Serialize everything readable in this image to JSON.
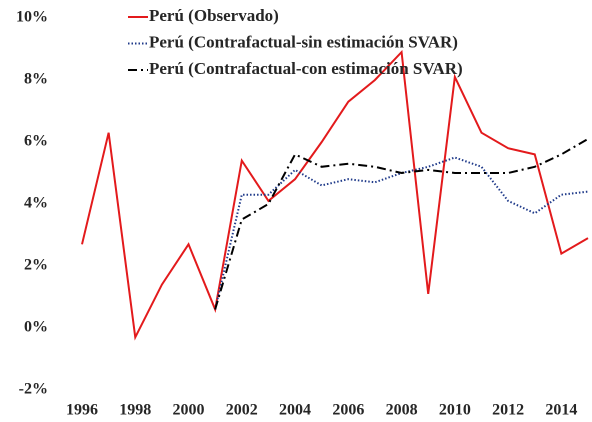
{
  "chart_data": {
    "type": "line",
    "x": [
      1996,
      1997,
      1998,
      1999,
      2000,
      2001,
      2002,
      2003,
      2004,
      2005,
      2006,
      2007,
      2008,
      2009,
      2010,
      2011,
      2012,
      2013,
      2014,
      2015
    ],
    "series": [
      {
        "name": "Perú (Observado)",
        "color": "#e31a1c",
        "dash": "solid",
        "values": [
          2.7,
          6.3,
          -0.3,
          1.4,
          2.7,
          0.6,
          5.4,
          4.1,
          4.8,
          6.0,
          7.3,
          8.0,
          8.9,
          1.1,
          8.1,
          6.3,
          5.8,
          5.6,
          2.4,
          2.9
        ]
      },
      {
        "name": "Perú (Contrafactual-sin estimación SVAR)",
        "color": "#1f3a8a",
        "dash": "dotted",
        "values": [
          null,
          null,
          null,
          null,
          null,
          0.6,
          4.3,
          4.3,
          5.1,
          4.6,
          4.8,
          4.7,
          5.0,
          5.2,
          5.5,
          5.2,
          4.1,
          3.7,
          4.3,
          4.4
        ]
      },
      {
        "name": "Perú (Contrafactual-con estimación SVAR)",
        "color": "#000000",
        "dash": "dashdot",
        "values": [
          null,
          null,
          null,
          null,
          null,
          0.6,
          3.5,
          4.0,
          5.6,
          5.2,
          5.3,
          5.2,
          5.0,
          5.1,
          5.0,
          5.0,
          5.0,
          5.2,
          5.6,
          6.1
        ]
      }
    ],
    "xlim": [
      1996,
      2015
    ],
    "xticks": [
      1996,
      1998,
      2000,
      2002,
      2004,
      2006,
      2008,
      2010,
      2012,
      2014
    ],
    "ylim": [
      -2,
      10
    ],
    "yticks": [
      {
        "value": -2,
        "label": "-2%"
      },
      {
        "value": 0,
        "label": "0%"
      },
      {
        "value": 2,
        "label": "2%"
      },
      {
        "value": 4,
        "label": "4%"
      },
      {
        "value": 6,
        "label": "6%"
      },
      {
        "value": 8,
        "label": "8%"
      },
      {
        "value": 10,
        "label": "10%"
      }
    ],
    "grid": false,
    "legend": "top"
  }
}
